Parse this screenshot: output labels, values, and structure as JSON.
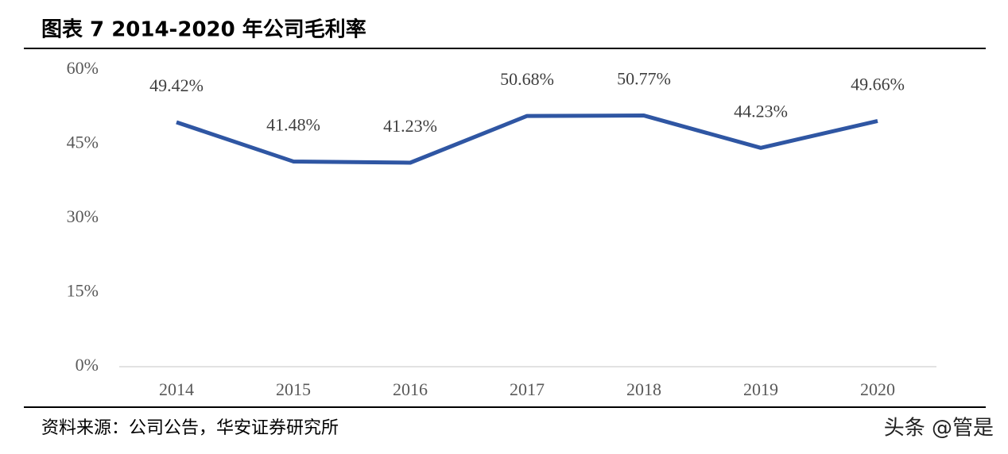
{
  "chart_data": {
    "type": "line",
    "title": "图表 7 2014-2020 年公司毛利率",
    "categories": [
      "2014",
      "2015",
      "2016",
      "2017",
      "2018",
      "2019",
      "2020"
    ],
    "values": [
      49.42,
      41.48,
      41.23,
      50.68,
      50.77,
      44.23,
      49.66
    ],
    "value_labels": [
      "49.42%",
      "41.48%",
      "41.23%",
      "50.68%",
      "50.77%",
      "44.23%",
      "49.66%"
    ],
    "color": "#2f56a3",
    "ylim": [
      0,
      60
    ],
    "yticks": [
      {
        "value": 0,
        "label": "0%"
      },
      {
        "value": 15,
        "label": "15%"
      },
      {
        "value": 30,
        "label": "30%"
      },
      {
        "value": 45,
        "label": "45%"
      },
      {
        "value": 60,
        "label": "60%"
      }
    ],
    "grid": false,
    "source": "资料来源：公司公告，华安证券研究所",
    "watermark": "头条 @管是"
  }
}
